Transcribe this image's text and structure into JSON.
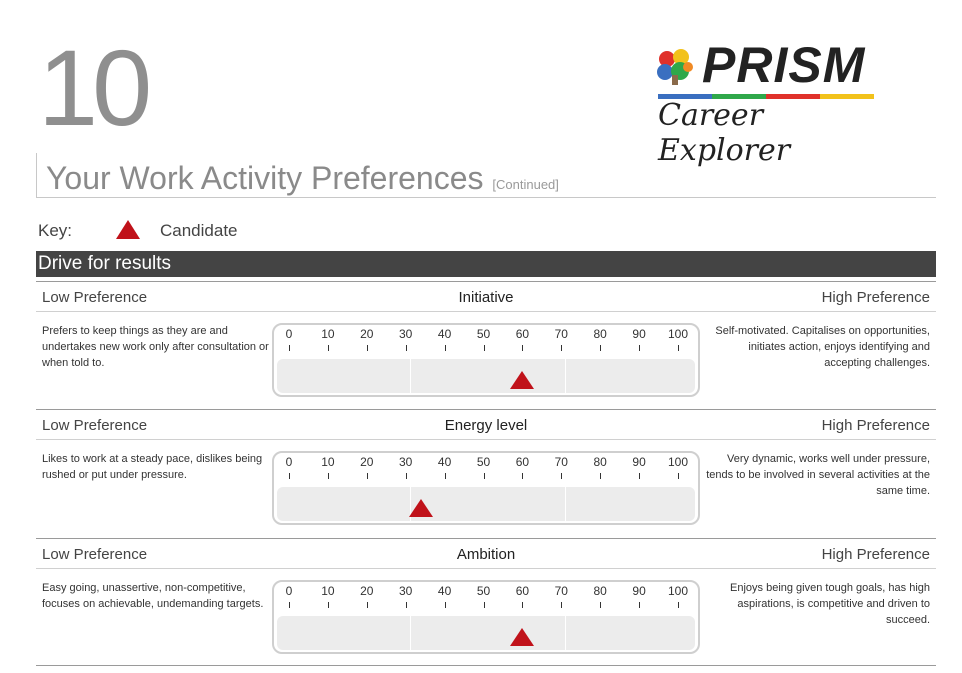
{
  "page_number": "10",
  "logo": {
    "word": "PRISM",
    "subtitle": "Career Explorer",
    "stripe_colors": [
      "#3a6fc0",
      "#2fa84a",
      "#e0312b",
      "#f2c21b"
    ]
  },
  "title": {
    "main": "Your Work Activity Preferences",
    "suffix": "[Continued]"
  },
  "key": {
    "label": "Key:",
    "item": "Candidate",
    "marker_color": "#c0121a"
  },
  "section": "Drive for results",
  "scale_ticks": [
    "0",
    "10",
    "20",
    "30",
    "40",
    "50",
    "60",
    "70",
    "80",
    "90",
    "100"
  ],
  "rows": [
    {
      "low_label": "Low Preference",
      "name": "Initiative",
      "high_label": "High Preference",
      "low_desc": "Prefers to keep things as they are and undertakes new work only after consultation or when told to.",
      "high_desc": "Self-motivated. Capitalises on opportunities, initiates action, enjoys identifying and accepting challenges.",
      "score": 60
    },
    {
      "low_label": "Low Preference",
      "name": "Energy level",
      "high_label": "High Preference",
      "low_desc": "Likes to work at a steady pace, dislikes being rushed or put under pressure.",
      "high_desc": "Very dynamic, works well under pressure, tends to be involved in several activities at the same time.",
      "score": 34
    },
    {
      "low_label": "Low Preference",
      "name": "Ambition",
      "high_label": "High Preference",
      "low_desc": "Easy going, unassertive, non-competitive, focuses on achievable, undemanding targets.",
      "high_desc": "Enjoys being given tough goals, has high aspirations, is competitive and driven to succeed.",
      "score": 60
    }
  ]
}
